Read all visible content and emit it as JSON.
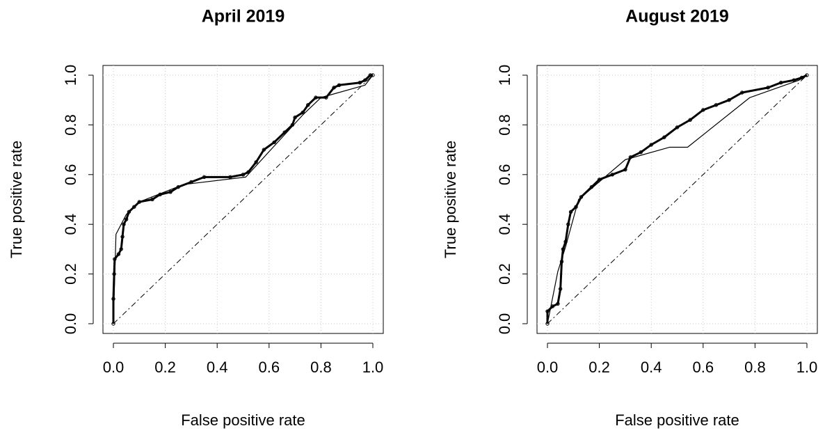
{
  "chart_data": [
    {
      "type": "line",
      "title": "April 2019",
      "xlabel": "False positive rate",
      "ylabel": "True positive rate",
      "xlim": [
        0,
        1
      ],
      "ylim": [
        0,
        1
      ],
      "grid": true,
      "xticks": [
        {
          "value": 0,
          "label": "0.0"
        },
        0.2,
        0.4,
        0.6,
        0.8,
        {
          "value": 1,
          "label": "1.0"
        }
      ],
      "yticks": [
        {
          "value": 0,
          "label": "0.0"
        },
        0.2,
        0.4,
        0.6,
        0.8,
        {
          "value": 1,
          "label": "1.0"
        }
      ],
      "series": [
        {
          "color": "#000000",
          "line_width": 3,
          "marker": true,
          "x": [
            0,
            0,
            0.003,
            0.005,
            0.02,
            0.03,
            0.035,
            0.04,
            0.05,
            0.06,
            0.08,
            0.1,
            0.15,
            0.18,
            0.22,
            0.25,
            0.3,
            0.35,
            0.45,
            0.5,
            0.52,
            0.55,
            0.58,
            0.62,
            0.66,
            0.69,
            0.7,
            0.73,
            0.75,
            0.78,
            0.82,
            0.85,
            0.87,
            0.95,
            0.97,
            0.99,
            1
          ],
          "values": [
            0,
            0.1,
            0.2,
            0.26,
            0.28,
            0.3,
            0.35,
            0.4,
            0.42,
            0.45,
            0.47,
            0.49,
            0.5,
            0.52,
            0.53,
            0.55,
            0.57,
            0.59,
            0.59,
            0.6,
            0.61,
            0.65,
            0.7,
            0.73,
            0.77,
            0.8,
            0.83,
            0.85,
            0.88,
            0.91,
            0.91,
            0.95,
            0.96,
            0.97,
            0.98,
            1,
            1
          ]
        },
        {
          "color": "#000000",
          "line_width": 1.2,
          "marker": false,
          "x": [
            0,
            0.01,
            0.05,
            0.1,
            0.27,
            0.51,
            0.73,
            0.8,
            0.97,
            1
          ],
          "values": [
            0,
            0.36,
            0.44,
            0.49,
            0.56,
            0.59,
            0.84,
            0.91,
            0.96,
            1
          ]
        },
        {
          "color": "#000000",
          "line_width": 1,
          "marker": false,
          "dash": "8 4 2 4",
          "x": [
            0,
            1
          ],
          "values": [
            0,
            1
          ]
        }
      ]
    },
    {
      "type": "line",
      "title": "August 2019",
      "xlabel": "False positive rate",
      "ylabel": "True positive rate",
      "xlim": [
        0,
        1
      ],
      "ylim": [
        0,
        1
      ],
      "grid": true,
      "xticks": [
        {
          "value": 0,
          "label": "0.0"
        },
        0.2,
        0.4,
        0.6,
        0.8,
        {
          "value": 1,
          "label": "1.0"
        }
      ],
      "yticks": [
        {
          "value": 0,
          "label": "0.0"
        },
        0.2,
        0.4,
        0.6,
        0.8,
        {
          "value": 1,
          "label": "1.0"
        }
      ],
      "series": [
        {
          "color": "#000000",
          "line_width": 3,
          "marker": true,
          "x": [
            0,
            0,
            0.02,
            0.04,
            0.05,
            0.055,
            0.06,
            0.07,
            0.08,
            0.09,
            0.11,
            0.13,
            0.17,
            0.2,
            0.25,
            0.3,
            0.32,
            0.36,
            0.4,
            0.45,
            0.5,
            0.55,
            0.6,
            0.65,
            0.7,
            0.75,
            0.85,
            0.9,
            0.95,
            0.98,
            1
          ],
          "values": [
            0,
            0.05,
            0.07,
            0.08,
            0.14,
            0.25,
            0.3,
            0.33,
            0.4,
            0.45,
            0.47,
            0.51,
            0.55,
            0.58,
            0.6,
            0.62,
            0.67,
            0.69,
            0.72,
            0.75,
            0.79,
            0.82,
            0.86,
            0.88,
            0.9,
            0.93,
            0.95,
            0.97,
            0.98,
            0.99,
            1
          ]
        },
        {
          "color": "#000000",
          "line_width": 1.2,
          "marker": false,
          "x": [
            0,
            0.04,
            0.07,
            0.12,
            0.3,
            0.47,
            0.54,
            0.78,
            0.97,
            1
          ],
          "values": [
            0,
            0.21,
            0.31,
            0.5,
            0.66,
            0.71,
            0.71,
            0.91,
            0.98,
            1
          ]
        },
        {
          "color": "#000000",
          "line_width": 1,
          "marker": false,
          "dash": "8 4 2 4",
          "x": [
            0,
            1
          ],
          "values": [
            0,
            1
          ]
        }
      ]
    }
  ]
}
